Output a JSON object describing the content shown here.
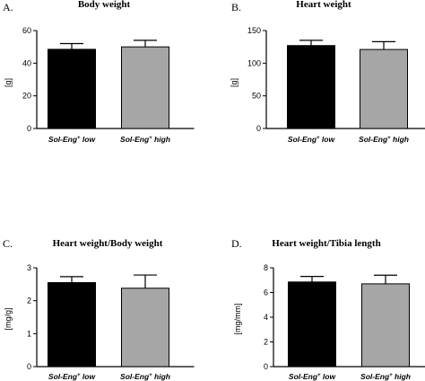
{
  "colors": {
    "low": "#000000",
    "high": "#a6a6a6",
    "axis": "#000000"
  },
  "chart_data": [
    {
      "type": "bar",
      "panel": "A.",
      "title": "Body weight",
      "ylabel": "[g]",
      "ylim": [
        0,
        60
      ],
      "yticks": [
        0,
        20,
        40,
        60
      ],
      "categories": [
        "Sol-Eng⁺ low",
        "Sol-Eng⁺ high"
      ],
      "values": [
        48.5,
        50
      ],
      "errors": [
        3.5,
        4
      ]
    },
    {
      "type": "bar",
      "panel": "B.",
      "title": "Heart weight",
      "ylabel": "[g]",
      "ylim": [
        0,
        150
      ],
      "yticks": [
        0,
        50,
        100,
        150
      ],
      "categories": [
        "Sol-Eng⁺ low",
        "Sol-Eng⁺ high"
      ],
      "values": [
        127,
        121
      ],
      "errors": [
        8,
        12
      ]
    },
    {
      "type": "bar",
      "panel": "C.",
      "title": "Heart weight/Body weight",
      "ylabel": "[mg/g]",
      "ylim": [
        0,
        3
      ],
      "yticks": [
        0,
        1,
        2,
        3
      ],
      "categories": [
        "Sol-Eng⁺ low",
        "Sol-Eng⁺ high"
      ],
      "values": [
        2.55,
        2.38
      ],
      "errors": [
        0.18,
        0.4
      ]
    },
    {
      "type": "bar",
      "panel": "D.",
      "title": "Heart weight/Tibia length",
      "ylabel": "[mg/mm]",
      "ylim": [
        0,
        8
      ],
      "yticks": [
        0,
        2,
        4,
        6,
        8
      ],
      "categories": [
        "Sol-Eng⁺ low",
        "Sol-Eng⁺ high"
      ],
      "values": [
        6.85,
        6.7
      ],
      "errors": [
        0.45,
        0.7
      ]
    }
  ]
}
